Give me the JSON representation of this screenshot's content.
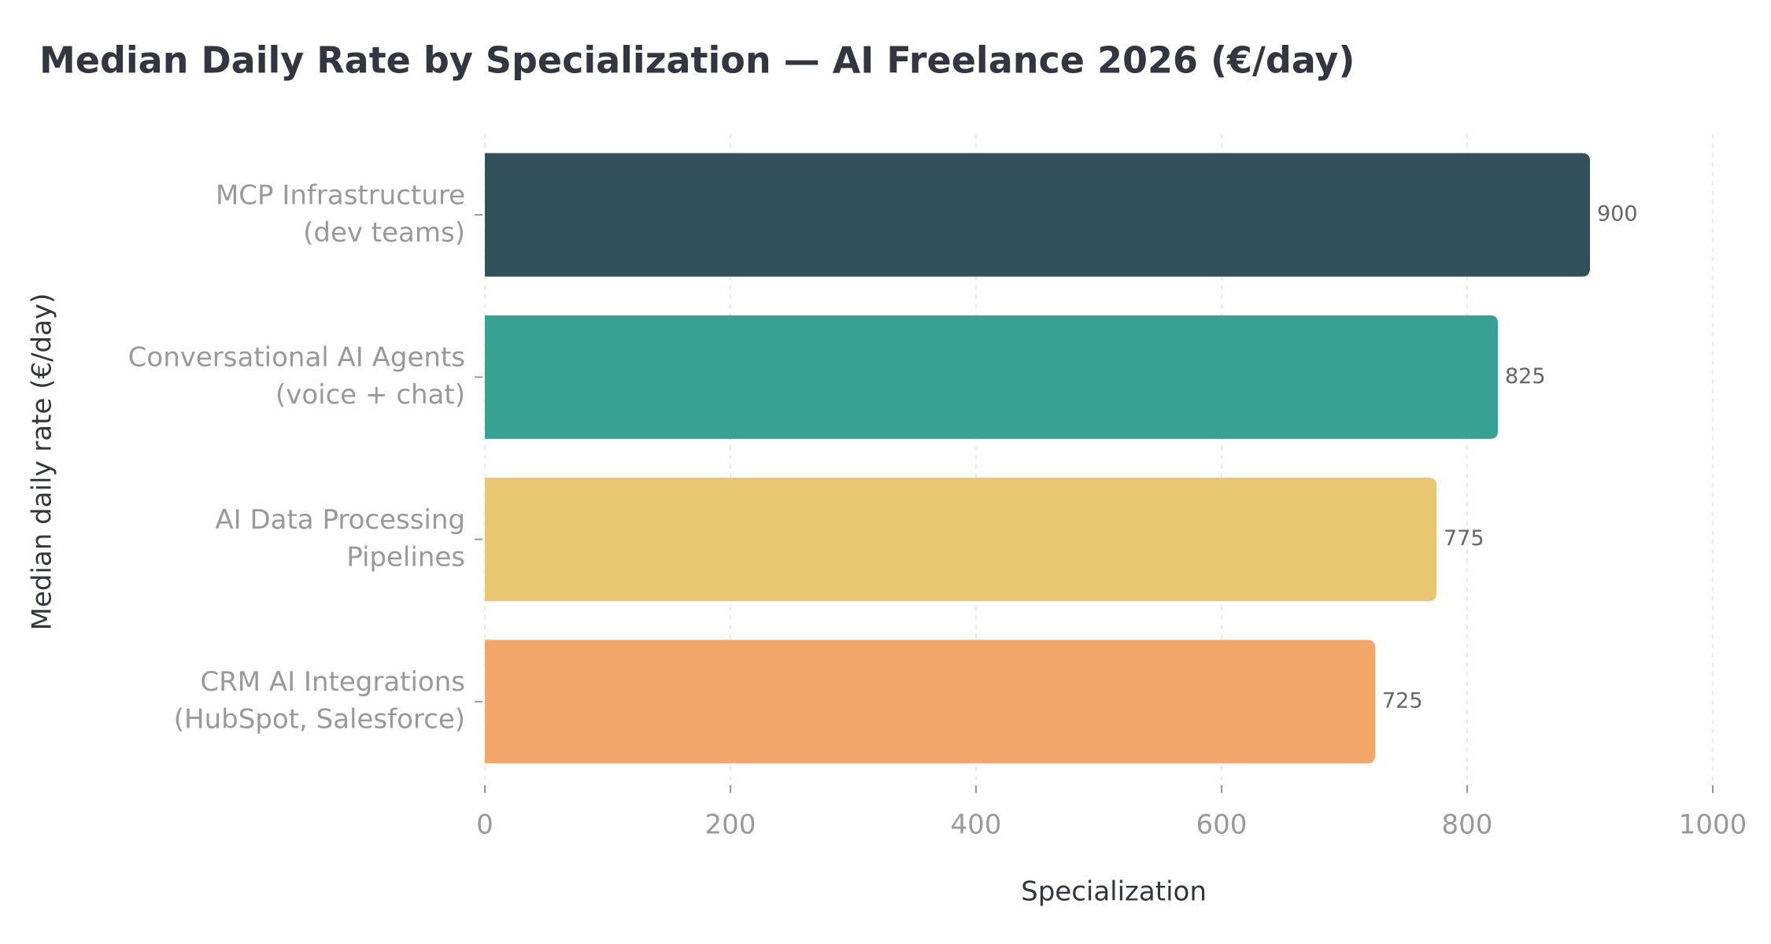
{
  "chart_data": {
    "type": "barh",
    "title": "Median Daily Rate by Specialization — AI Freelance 2026 (€/day)",
    "xlabel": "Specialization",
    "ylabel": "Median daily rate (€/day)",
    "categories": [
      "MCP Infrastructure\n(dev teams)",
      "Conversational AI Agents\n(voice + chat)",
      "AI Data Processing\nPipelines",
      "CRM AI Integrations\n(HubSpot, Salesforce)"
    ],
    "values": [
      900,
      825,
      775,
      725
    ],
    "colors": [
      "#324f5c",
      "#37a294",
      "#e8c672",
      "#f3a66a"
    ],
    "xlim": [
      0,
      1000
    ],
    "xticks": [
      0,
      200,
      400,
      600,
      800,
      1000
    ],
    "grid": true
  }
}
